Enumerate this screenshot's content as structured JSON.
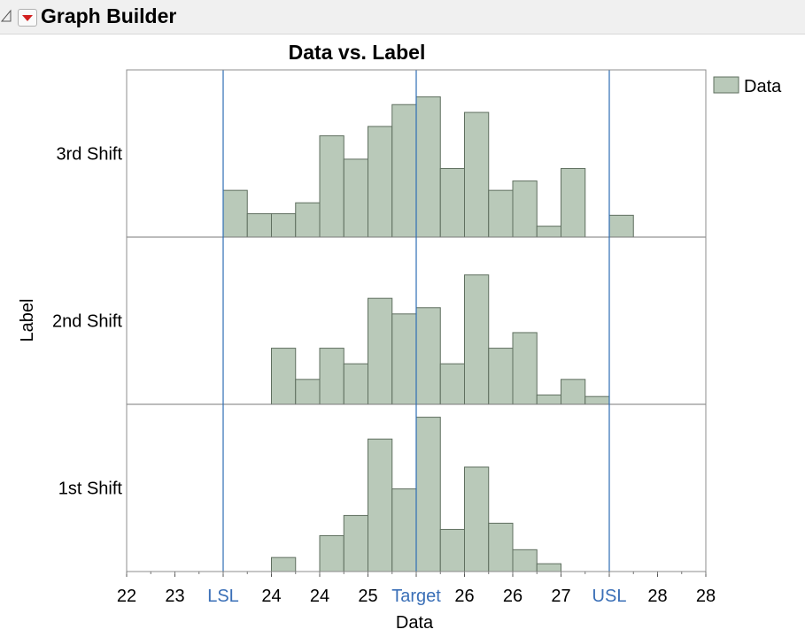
{
  "window": {
    "title": "Graph Builder"
  },
  "chart_data": {
    "type": "bar",
    "title": "Data vs. Label",
    "xlabel": "Data",
    "ylabel": "Label",
    "xlim": [
      22,
      28
    ],
    "x_ticks": [
      {
        "value": 22,
        "label": "22"
      },
      {
        "value": 22.5,
        "label": "23"
      },
      {
        "value": 23,
        "label": "LSL"
      },
      {
        "value": 23.5,
        "label": "24"
      },
      {
        "value": 24,
        "label": "24"
      },
      {
        "value": 24.5,
        "label": "25"
      },
      {
        "value": 25,
        "label": "Target"
      },
      {
        "value": 25.5,
        "label": "26"
      },
      {
        "value": 26,
        "label": "26"
      },
      {
        "value": 26.5,
        "label": "27"
      },
      {
        "value": 27,
        "label": "USL"
      },
      {
        "value": 27.5,
        "label": "28"
      },
      {
        "value": 28,
        "label": "28"
      }
    ],
    "reference_lines": [
      {
        "label": "LSL",
        "value": 23
      },
      {
        "label": "Target",
        "value": 25
      },
      {
        "label": "USL",
        "value": 27
      }
    ],
    "bin_width": 0.25,
    "legend": {
      "entries": [
        "Data"
      ],
      "position": "top-right"
    },
    "colors": {
      "bar": "#b9c9b9",
      "bar_edge": "#5f6f5f",
      "ref_line": "#2e6db4",
      "ref_label": "#3a6fb7"
    },
    "panels": [
      {
        "label": "3rd Shift",
        "bin_starts": [
          23,
          23.25,
          23.5,
          23.75,
          24,
          24.25,
          24.5,
          24.75,
          25,
          25.25,
          25.5,
          25.75,
          26,
          26.25,
          26.5,
          26.75,
          27
        ],
        "counts": [
          3.0,
          1.5,
          1.5,
          2.2,
          6.5,
          5.0,
          7.1,
          8.5,
          9.0,
          4.4,
          8.0,
          3.0,
          3.6,
          0.7,
          4.4,
          0,
          1.4
        ]
      },
      {
        "label": "2nd Shift",
        "bin_starts": [
          23.5,
          23.75,
          24,
          24.25,
          24.5,
          24.75,
          25,
          25.25,
          25.5,
          25.75,
          26,
          26.25,
          26.5,
          26.75
        ],
        "counts": [
          3.6,
          1.6,
          3.6,
          2.6,
          6.8,
          5.8,
          6.2,
          2.6,
          8.3,
          3.6,
          4.6,
          0.6,
          1.6,
          0.5
        ]
      },
      {
        "label": "1st Shift",
        "bin_starts": [
          23.5,
          23.75,
          24,
          24.25,
          24.5,
          24.75,
          25,
          25.25,
          25.5,
          25.75,
          26,
          26.25,
          26.5
        ],
        "counts": [
          0.9,
          0,
          2.3,
          3.6,
          8.5,
          5.3,
          9.9,
          2.7,
          6.7,
          3.1,
          1.4,
          0.5,
          0
        ]
      }
    ]
  }
}
